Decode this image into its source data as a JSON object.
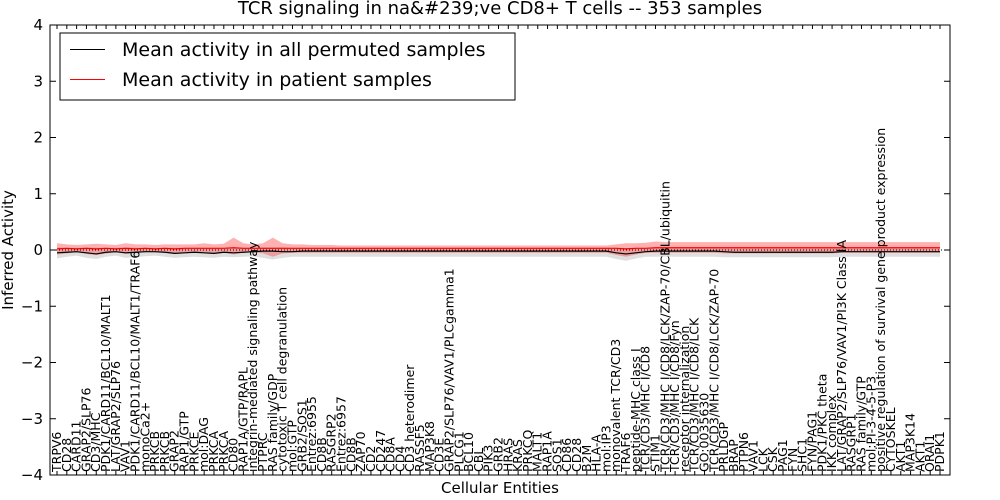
{
  "chart_data": {
    "type": "line",
    "title": "TCR signaling in na&#239;ve CD8+ T cells -- 353 samples",
    "xlabel": "Cellular Entities",
    "ylabel": "Inferred Activity",
    "ylim": [
      -4,
      4
    ],
    "yticks": [
      -4,
      -3,
      -2,
      -1,
      0,
      1,
      2,
      3,
      4
    ],
    "ytick_labels": [
      "−4",
      "−3",
      "−2",
      "−1",
      "0",
      "1",
      "2",
      "3",
      "4"
    ],
    "legend_position": "top-left",
    "categories": [
      "TRPV6",
      "CD28",
      "CARD11",
      "GRAP2/SLP76",
      "CD3/MHC",
      "PDK1/CARD11/BCL10/MALT1",
      "LAT/GRAP2/SLP76",
      "VAV1",
      "PDK1/CARD11/BCL10/MALT1/TRAF6",
      "monoCa2+",
      "PRKCB",
      "PRKCB",
      "GRAP2",
      "RAP1/GTP",
      "PRKCE",
      "mol:DAG",
      "PRKCA",
      "PRKCA",
      "CD80",
      "RAP1A/GTP/RAPL",
      "integrin-mediated signaling pathway",
      "PTPRC",
      "RAS family/GDP",
      "cytotoxic T cell degranulation",
      "mol:GTP",
      "GRB2/SOS1",
      "Entrez:6955",
      "CD8B",
      "RASGRP2",
      "Entrez:6957",
      "CD8B",
      "ZAP70",
      "CD2",
      "CD247",
      "CD8A",
      "CD4",
      "CD3 heterodimer",
      "RASSF5",
      "MAP3K8",
      "CD3E",
      "GRAP2/SLP76/VAV1/PLCgamma1",
      "PLCG1",
      "BCL10",
      "CBL",
      "PIK3",
      "GRB2",
      "HRAS",
      "KRAS",
      "PRKCQ",
      "MALT1",
      "RAP1A",
      "SOS1",
      "CD86",
      "CD28",
      "B2M",
      "HLA-A",
      "mol:IP3",
      "monovalent TCR/CD3",
      "TRAF6",
      "peptide-MHC class I",
      "TCR/CD3/MHC I/CD8",
      "STIM1",
      "TCR/CD3/MHC I/CD8/LCK/ZAP-70/CBL/ubiquitin",
      "TCR/CD3/MHC I/CD8/Fyn",
      "receptor internalization",
      "TCR/CD3/MHC I/CD8/LCK",
      "GO:0035630",
      "TCR/CD3/MHC I/CD8/LCK/ZAP-70",
      "PRLDGP",
      "BRAP",
      "PTPN6",
      "VAV1",
      "LCK",
      "CSK",
      "PAG1",
      "FYN",
      "SHC1",
      "FYN/PAG1",
      "PDK1/PKC theta",
      "IKK complex",
      "LAT/GRAP2/SLP76/VAV1/PI3K Class IA",
      "RASGRP1",
      "RAS family/GTP",
      "mol:PI-3-4-5-P3",
      "positive regulation of survival gene product expression",
      "CYTOSKEL",
      "AKT1",
      "MAP3K14",
      "AKT1",
      "ORAI1",
      "PDPK1"
    ],
    "series": [
      {
        "name": "Mean activity in all permuted samples",
        "color": "#000000",
        "values": [
          -0.05,
          -0.04,
          -0.03,
          -0.05,
          -0.07,
          -0.04,
          -0.03,
          -0.05,
          -0.04,
          -0.03,
          -0.03,
          -0.04,
          -0.06,
          -0.05,
          -0.04,
          -0.05,
          -0.06,
          -0.04,
          -0.05,
          -0.04,
          -0.03,
          -0.02,
          -0.02,
          -0.03,
          -0.03,
          -0.02,
          -0.02,
          -0.02,
          -0.02,
          -0.02,
          -0.02,
          -0.02,
          -0.02,
          -0.02,
          -0.02,
          -0.02,
          -0.02,
          -0.02,
          -0.02,
          -0.02,
          -0.02,
          -0.02,
          -0.02,
          -0.02,
          -0.02,
          -0.02,
          -0.02,
          -0.02,
          -0.02,
          -0.02,
          -0.02,
          -0.02,
          -0.02,
          -0.02,
          -0.02,
          -0.02,
          -0.02,
          -0.05,
          -0.07,
          -0.05,
          -0.03,
          -0.02,
          -0.02,
          -0.02,
          -0.02,
          -0.02,
          -0.02,
          -0.02,
          -0.03,
          -0.04,
          -0.04,
          -0.04,
          -0.04,
          -0.04,
          -0.04,
          -0.04,
          -0.04,
          -0.04,
          -0.04,
          -0.04,
          -0.03,
          -0.03,
          -0.03,
          -0.03,
          -0.03,
          -0.03,
          -0.03,
          -0.03,
          -0.03,
          -0.03,
          -0.03
        ]
      },
      {
        "name": "Mean activity in patient samples",
        "color": "#ff0000",
        "values": [
          0.02,
          0.03,
          0.02,
          0.03,
          0.02,
          0.03,
          0.02,
          0.03,
          0.02,
          0.03,
          0.02,
          0.03,
          0.02,
          0.03,
          0.03,
          0.03,
          0.03,
          0.03,
          0.04,
          0.03,
          0.03,
          0.03,
          0.03,
          0.03,
          0.03,
          0.03,
          0.03,
          0.03,
          0.03,
          0.03,
          0.03,
          0.03,
          0.03,
          0.03,
          0.03,
          0.03,
          0.03,
          0.03,
          0.03,
          0.03,
          0.03,
          0.03,
          0.03,
          0.03,
          0.03,
          0.03,
          0.03,
          0.03,
          0.03,
          0.03,
          0.03,
          0.03,
          0.03,
          0.03,
          0.03,
          0.03,
          0.03,
          0.03,
          0.02,
          0.03,
          0.03,
          0.04,
          0.04,
          0.04,
          0.04,
          0.04,
          0.04,
          0.04,
          0.04,
          0.04,
          0.04,
          0.04,
          0.04,
          0.04,
          0.04,
          0.04,
          0.04,
          0.04,
          0.04,
          0.04,
          0.04,
          0.04,
          0.04,
          0.04,
          0.04,
          0.04,
          0.04,
          0.04,
          0.04,
          0.04,
          0.04
        ]
      }
    ],
    "band_permuted": {
      "lower": [
        -0.15,
        -0.12,
        -0.1,
        -0.14,
        -0.16,
        -0.12,
        -0.1,
        -0.14,
        -0.13,
        -0.11,
        -0.1,
        -0.12,
        -0.14,
        -0.13,
        -0.12,
        -0.13,
        -0.14,
        -0.12,
        -0.13,
        -0.12,
        -0.11,
        -0.14,
        -0.17,
        -0.14,
        -0.12,
        -0.12,
        -0.12,
        -0.12,
        -0.12,
        -0.12,
        -0.12,
        -0.12,
        -0.12,
        -0.12,
        -0.12,
        -0.12,
        -0.12,
        -0.12,
        -0.12,
        -0.12,
        -0.12,
        -0.12,
        -0.12,
        -0.12,
        -0.12,
        -0.12,
        -0.12,
        -0.12,
        -0.12,
        -0.12,
        -0.12,
        -0.12,
        -0.12,
        -0.12,
        -0.12,
        -0.12,
        -0.12,
        -0.16,
        -0.19,
        -0.15,
        -0.12,
        -0.12,
        -0.12,
        -0.12,
        -0.12,
        -0.12,
        -0.12,
        -0.12,
        -0.13,
        -0.13,
        -0.13,
        -0.13,
        -0.13,
        -0.13,
        -0.13,
        -0.13,
        -0.13,
        -0.13,
        -0.13,
        -0.13,
        -0.12,
        -0.12,
        -0.12,
        -0.12,
        -0.12,
        -0.12,
        -0.12,
        -0.12,
        -0.12,
        -0.12,
        -0.12
      ],
      "upper": [
        0.05,
        0.04,
        0.04,
        0.05,
        0.04,
        0.04,
        0.04,
        0.05,
        0.04,
        0.04,
        0.04,
        0.04,
        0.04,
        0.04,
        0.04,
        0.04,
        0.04,
        0.04,
        0.04,
        0.04,
        0.04,
        0.05,
        0.05,
        0.05,
        0.04,
        0.04,
        0.04,
        0.04,
        0.04,
        0.04,
        0.04,
        0.04,
        0.04,
        0.04,
        0.04,
        0.04,
        0.04,
        0.04,
        0.04,
        0.04,
        0.04,
        0.04,
        0.04,
        0.04,
        0.04,
        0.04,
        0.04,
        0.04,
        0.04,
        0.04,
        0.04,
        0.04,
        0.04,
        0.04,
        0.04,
        0.04,
        0.04,
        0.04,
        0.03,
        0.04,
        0.04,
        0.04,
        0.04,
        0.04,
        0.04,
        0.04,
        0.04,
        0.04,
        0.04,
        0.04,
        0.04,
        0.04,
        0.04,
        0.04,
        0.04,
        0.04,
        0.04,
        0.04,
        0.04,
        0.04,
        0.04,
        0.04,
        0.04,
        0.04,
        0.04,
        0.04,
        0.04,
        0.04,
        0.04,
        0.04,
        0.04
      ]
    },
    "band_patient": {
      "lower": [
        -0.08,
        -0.06,
        -0.04,
        -0.07,
        -0.09,
        -0.06,
        -0.04,
        -0.07,
        -0.05,
        -0.04,
        -0.04,
        -0.05,
        -0.07,
        -0.06,
        -0.05,
        -0.06,
        -0.07,
        -0.05,
        -0.08,
        -0.05,
        -0.04,
        -0.06,
        -0.12,
        -0.06,
        -0.05,
        -0.05,
        -0.05,
        -0.05,
        -0.05,
        -0.05,
        -0.05,
        -0.05,
        -0.05,
        -0.05,
        -0.05,
        -0.05,
        -0.05,
        -0.05,
        -0.05,
        -0.05,
        -0.05,
        -0.05,
        -0.05,
        -0.05,
        -0.05,
        -0.05,
        -0.05,
        -0.05,
        -0.05,
        -0.05,
        -0.05,
        -0.05,
        -0.05,
        -0.05,
        -0.05,
        -0.05,
        -0.05,
        -0.09,
        -0.12,
        -0.08,
        -0.05,
        -0.05,
        -0.05,
        -0.05,
        -0.05,
        -0.05,
        -0.05,
        -0.05,
        -0.06,
        -0.06,
        -0.06,
        -0.06,
        -0.06,
        -0.06,
        -0.06,
        -0.06,
        -0.06,
        -0.06,
        -0.06,
        -0.06,
        -0.05,
        -0.05,
        -0.05,
        -0.05,
        -0.05,
        -0.05,
        -0.05,
        -0.05,
        -0.05,
        -0.05,
        -0.05
      ],
      "upper": [
        0.12,
        0.1,
        0.09,
        0.1,
        0.11,
        0.1,
        0.09,
        0.12,
        0.1,
        0.1,
        0.09,
        0.1,
        0.1,
        0.1,
        0.1,
        0.12,
        0.1,
        0.11,
        0.22,
        0.12,
        0.1,
        0.12,
        0.22,
        0.12,
        0.1,
        0.1,
        0.09,
        0.09,
        0.09,
        0.08,
        0.08,
        0.08,
        0.08,
        0.08,
        0.08,
        0.08,
        0.08,
        0.08,
        0.08,
        0.08,
        0.08,
        0.08,
        0.08,
        0.08,
        0.08,
        0.08,
        0.08,
        0.08,
        0.08,
        0.08,
        0.08,
        0.08,
        0.08,
        0.08,
        0.08,
        0.08,
        0.08,
        0.1,
        0.12,
        0.12,
        0.13,
        0.15,
        0.14,
        0.14,
        0.14,
        0.14,
        0.14,
        0.14,
        0.14,
        0.14,
        0.14,
        0.14,
        0.14,
        0.14,
        0.14,
        0.14,
        0.14,
        0.14,
        0.14,
        0.14,
        0.14,
        0.14,
        0.14,
        0.14,
        0.14,
        0.14,
        0.14,
        0.14,
        0.14,
        0.14,
        0.14
      ]
    }
  }
}
